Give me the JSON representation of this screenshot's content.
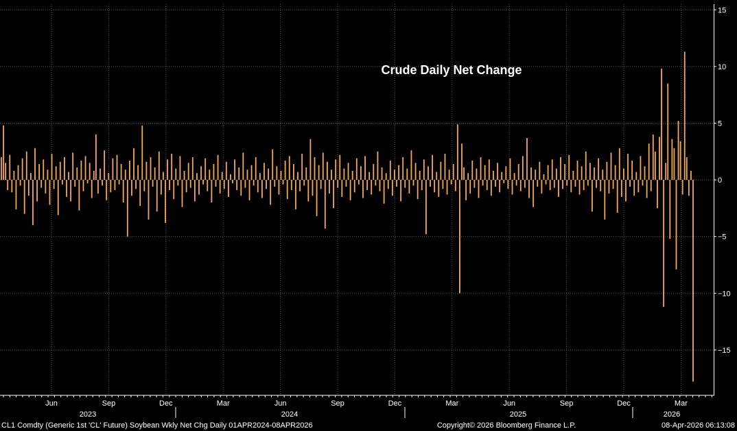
{
  "colors": {
    "background": "#000000",
    "bar": "#f4a95a",
    "grid": "#5a5a5a",
    "axis": "#ffffff"
  },
  "footer": {
    "left": "CL1 Comdty (Generic 1st 'CL' Future) Soybean Wkly Net Chg Daily 01APR2024-08APR2026",
    "center": "Copyright© 2026 Bloomberg Finance L.P.",
    "right": "08-Apr-2026 06:13:08"
  },
  "chart_data": {
    "type": "bar",
    "title": "Crude Daily Net Change",
    "ylim": [
      -19,
      15.5
    ],
    "yticks": [
      15,
      10,
      5,
      0,
      -5,
      -10,
      -15
    ],
    "grid": true,
    "month_ticks": [
      "Jun",
      "Sep",
      "Dec",
      "Mar",
      "Jun",
      "Sep",
      "Dec",
      "Mar",
      "Jun",
      "Sep",
      "Dec",
      "Mar"
    ],
    "year_labels": [
      "2023",
      "2024",
      "2025",
      "2026"
    ],
    "values": [
      2.0,
      4.8,
      1.5,
      -0.9,
      2.2,
      -1.1,
      0.8,
      -2.6,
      1.3,
      -0.5,
      1.9,
      -3.0,
      2.5,
      -1.4,
      0.6,
      -4.0,
      2.8,
      -1.9,
      1.4,
      -0.7,
      1.8,
      -1.2,
      0.9,
      -2.2,
      2.3,
      -0.8,
      1.2,
      -3.1,
      1.6,
      -0.4,
      2.0,
      -1.5,
      0.7,
      -1.9,
      2.4,
      -0.6,
      1.1,
      -2.7,
      1.7,
      -1.0,
      2.1,
      -0.3,
      1.5,
      -1.6,
      0.8,
      4.0,
      -1.2,
      1.0,
      -0.5,
      2.6,
      -1.8,
      0.6,
      -1.1,
      1.9,
      -0.9,
      2.2,
      -0.4,
      1.4,
      -2.0,
      0.9,
      -5.0,
      1.7,
      -1.4,
      2.8,
      -0.8,
      1.3,
      -2.3,
      4.8,
      -1.0,
      1.6,
      -3.5,
      2.0,
      -0.6,
      1.1,
      -2.8,
      2.5,
      -1.3,
      0.7,
      -3.8,
      1.8,
      -0.9,
      2.3,
      -1.7,
      1.0,
      -0.5,
      2.1,
      -2.4,
      0.8,
      -1.1,
      1.5,
      -0.7,
      2.0,
      -1.9,
      0.6,
      -1.3,
      1.2,
      -0.4,
      1.9,
      -1.0,
      0.9,
      -2.0,
      1.4,
      -0.6,
      2.2,
      -1.2,
      0.7,
      -0.8,
      1.6,
      -1.5,
      0.5,
      -0.3,
      1.8,
      -0.9,
      1.1,
      -1.4,
      2.4,
      -0.7,
      0.9,
      -1.8,
      1.3,
      -0.5,
      2.0,
      -1.1,
      0.6,
      -1.6,
      1.5,
      -0.8,
      1.0,
      -2.2,
      2.7,
      -0.6,
      1.2,
      -1.3,
      0.8,
      -0.4,
      1.7,
      -1.7,
      2.1,
      -0.9,
      1.4,
      -2.6,
      0.7,
      -1.0,
      2.3,
      -0.5,
      1.1,
      -1.9,
      3.6,
      -1.4,
      2.0,
      -3.2,
      1.3,
      -0.8,
      2.4,
      -4.3,
      1.6,
      -1.2,
      0.9,
      -2.5,
      1.8,
      -0.7,
      2.2,
      -1.5,
      1.0,
      -0.6,
      1.5,
      -1.8,
      0.8,
      -1.1,
      1.9,
      -0.4,
      1.2,
      -1.6,
      2.1,
      -0.9,
      0.7,
      -1.3,
      1.4,
      -0.5,
      2.5,
      -1.0,
      1.1,
      -2.1,
      0.6,
      -0.8,
      1.7,
      -1.4,
      0.9,
      -0.6,
      1.3,
      -1.9,
      2.0,
      -0.7,
      1.0,
      -1.2,
      2.6,
      -0.5,
      1.5,
      -1.7,
      0.8,
      -0.9,
      1.8,
      -4.8,
      1.2,
      -0.6,
      2.2,
      -1.1,
      0.7,
      -1.5,
      1.6,
      -0.8,
      2.3,
      -1.3,
      0.9,
      -0.4,
      1.4,
      -1.0,
      4.9,
      -10.0,
      3.2,
      1.1,
      -1.8,
      0.6,
      -1.2,
      1.7,
      -0.7,
      1.0,
      -1.6,
      2.0,
      -0.5,
      1.3,
      -0.9,
      1.8,
      -1.4,
      0.8,
      -0.6,
      1.5,
      -1.1,
      0.7,
      -0.3,
      1.2,
      -0.8,
      1.9,
      -1.3,
      0.6,
      -0.5,
      1.4,
      -1.0,
      2.1,
      -0.7,
      3.7,
      -1.6,
      1.1,
      -2.4,
      0.9,
      -0.6,
      1.6,
      -1.2,
      0.5,
      -0.4,
      1.3,
      -0.9,
      1.8,
      -0.7,
      1.0,
      -1.5,
      2.0,
      -0.8,
      1.4,
      -0.5,
      2.2,
      -1.1,
      0.8,
      -0.6,
      1.7,
      -1.3,
      1.2,
      -0.9,
      2.5,
      -0.5,
      1.5,
      -2.8,
      1.1,
      -0.7,
      1.9,
      -1.0,
      0.9,
      -3.5,
      1.6,
      -1.2,
      2.4,
      -0.8,
      1.3,
      -2.9,
      2.8,
      -1.5,
      1.0,
      -1.9,
      2.3,
      -0.6,
      1.7,
      -1.4,
      0.7,
      -1.1,
      2.1,
      -0.5,
      1.2,
      -1.6,
      3.2,
      -1.0,
      4.0,
      2.5,
      -2.5,
      3.8,
      9.8,
      -11.2,
      1.5,
      8.5,
      -5.2,
      3.6,
      2.8,
      -7.9,
      5.2,
      3.4,
      -1.3,
      11.3,
      2.0,
      -1.4,
      0.8,
      -17.8
    ]
  }
}
